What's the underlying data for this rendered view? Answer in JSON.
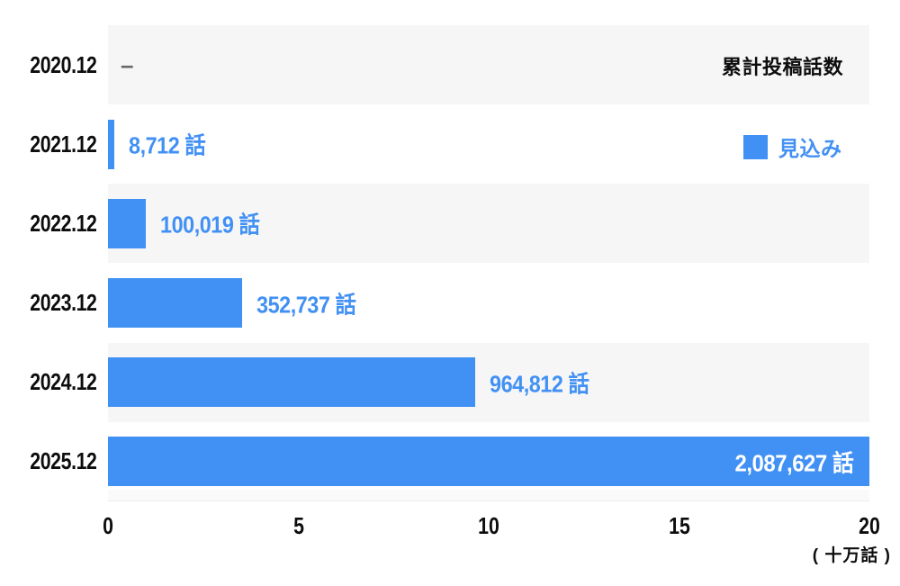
{
  "chart_data": {
    "type": "bar",
    "orientation": "horizontal",
    "title": "累計投稿話数",
    "legend": [
      {
        "label": "見込み",
        "color": "#4190f4"
      }
    ],
    "legend_position": "top-right",
    "categories": [
      "2020.12",
      "2021.12",
      "2022.12",
      "2023.12",
      "2024.12",
      "2025.12"
    ],
    "values": [
      null,
      8712,
      100019,
      352737,
      964812,
      2087627
    ],
    "value_labels": [
      "–",
      "8,712 話",
      "100,019 話",
      "352,737 話",
      "964,812 話",
      "2,087,627 話"
    ],
    "value_label_positions": [
      "outside",
      "outside",
      "outside",
      "outside",
      "outside",
      "inside"
    ],
    "x_ticks": [
      0,
      5,
      10,
      15,
      20
    ],
    "x_tick_labels": [
      "0",
      "5",
      "10",
      "15",
      "20"
    ],
    "xlim": [
      0,
      20
    ],
    "x_unit_label": "( 十万話 )",
    "x_unit_divisor": 100000,
    "grid": false,
    "bar_color": "#4190f4",
    "value_text_color": "#4190f4",
    "inside_value_text_color": "#ffffff",
    "no_data_dash_color": "#666666",
    "row_band_color": "#f6f6f7",
    "text_color": "#0d0d0d"
  }
}
